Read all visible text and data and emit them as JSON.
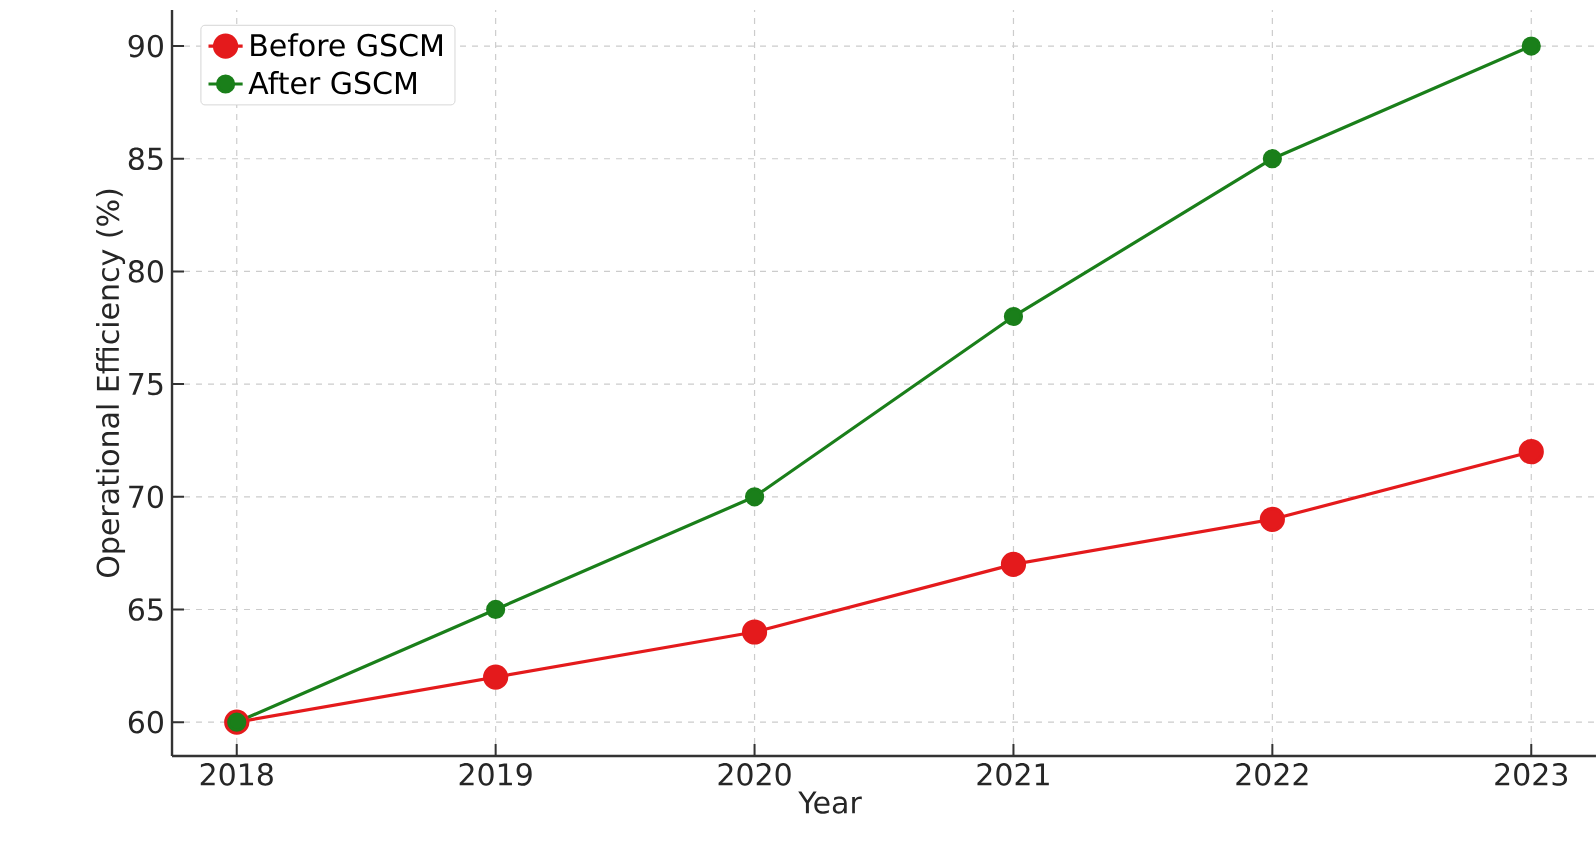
{
  "chart_data": {
    "type": "line",
    "xlabel": "Year",
    "ylabel": "Operational Efficiency (%)",
    "x": [
      2018,
      2019,
      2020,
      2021,
      2022,
      2023
    ],
    "series": [
      {
        "name": "Before GSCM",
        "color": "#e41a1c",
        "values": [
          60,
          62,
          64,
          67,
          69,
          72
        ]
      },
      {
        "name": "After GSCM",
        "color": "#1a7f1a",
        "values": [
          60,
          65,
          70,
          78,
          85,
          90
        ]
      }
    ],
    "xlim": [
      2017.75,
      2023.25
    ],
    "xticks": [
      2018,
      2019,
      2020,
      2021,
      2022,
      2023
    ],
    "ylim": [
      58.5,
      91.6
    ],
    "yticks": [
      60,
      65,
      70,
      75,
      80,
      85,
      90
    ],
    "grid": true,
    "legend": "top left",
    "marker": "circle",
    "line_style": "solid"
  }
}
